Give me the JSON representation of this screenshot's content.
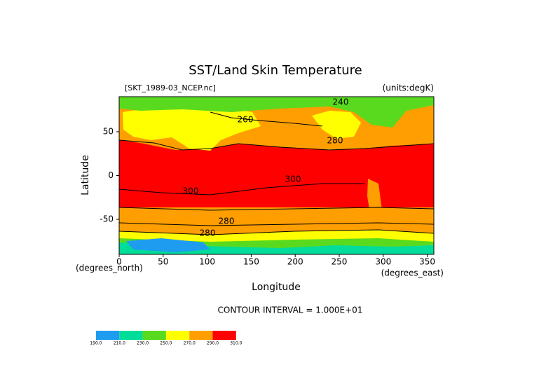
{
  "chart_data": {
    "type": "contour",
    "title": "SST/Land Skin Temperature",
    "file_label": "[SKT_1989-03_NCEP.nc]",
    "units_label": "(units:degK)",
    "x_label": "Longitude",
    "y_label": "Latitude",
    "x_units": "(degrees_east)",
    "y_units": "(degrees_north)",
    "contour_interval": "CONTOUR INTERVAL = 1.000E+01",
    "xlim": [
      0,
      357.5
    ],
    "ylim": [
      -90,
      90
    ],
    "xticks": [
      0,
      50,
      100,
      150,
      200,
      250,
      300,
      350
    ],
    "yticks": [
      -50,
      0,
      50
    ],
    "contour_labels": [
      240,
      260,
      280,
      300,
      300,
      280,
      280
    ],
    "colorbar": {
      "levels": [
        {
          "value": 190,
          "label": "190.0"
        },
        {
          "value": 210,
          "label": "210.0"
        },
        {
          "value": 230,
          "label": "230.0"
        },
        {
          "value": 250,
          "label": "250.0"
        },
        {
          "value": 270,
          "label": "270.0"
        },
        {
          "value": 290,
          "label": "290.0"
        },
        {
          "value": 310,
          "label": "310.0"
        }
      ],
      "colors": [
        "#1e9cf0",
        "#00dc9a",
        "#5ada1e",
        "#ffff00",
        "#ff9e00",
        "#ff0000"
      ]
    }
  }
}
